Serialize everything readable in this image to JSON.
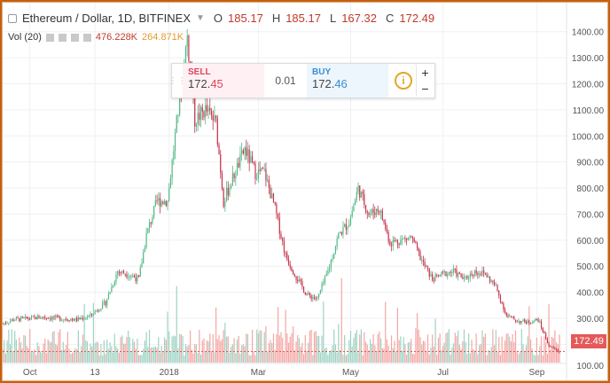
{
  "header": {
    "symbol": "Ethereum / Dollar, 1D, BITFINEX",
    "open_label": "O",
    "open": "185.17",
    "high_label": "H",
    "high": "185.17",
    "low_label": "L",
    "low": "167.32",
    "close_label": "C",
    "close": "172.49"
  },
  "volume_legend": {
    "label": "Vol (20)",
    "value_1": "476.228K",
    "value_2": "264.871K"
  },
  "trade_panel": {
    "sell_label": "SELL",
    "sell_price_main": "172.",
    "sell_price_tail": "45",
    "spread": "0.01",
    "buy_label": "BUY",
    "buy_price_main": "172.",
    "buy_price_tail": "46",
    "info_icon": "info-icon",
    "zoom_in": "+",
    "zoom_out": "−"
  },
  "last_price_tag": "172.49",
  "colors": {
    "up": "#53b987",
    "down": "#c5354b",
    "volume_up": "#9ed3c3",
    "volume_down": "#f4a7a5",
    "frame": "#c65f10"
  },
  "chart_data": {
    "type": "candlestick",
    "title": "Ethereum / Dollar, 1D, BITFINEX",
    "y_ticks": [
      200,
      300,
      400,
      500,
      600,
      700,
      800,
      900,
      1000,
      1100,
      1200,
      1300,
      1400
    ],
    "y_tick_labels": [
      "200.00",
      "300.00",
      "400.00",
      "500.00",
      "600.00",
      "700.00",
      "800.00",
      "900.00",
      "1000.00",
      "1100.00",
      "1200.00",
      "1300.00",
      "1400.00"
    ],
    "y_tick_partial_label": "100.00",
    "ylim": [
      130,
      1450
    ],
    "x_ticks": [
      {
        "label": "Oct",
        "date": "2017-10-01"
      },
      {
        "label": "13",
        "date": "2017-11-13"
      },
      {
        "label": "2018",
        "date": "2018-01-01"
      },
      {
        "label": "Mar",
        "date": "2018-03-01"
      },
      {
        "label": "May",
        "date": "2018-05-01"
      },
      {
        "label": "Jul",
        "date": "2018-07-01"
      },
      {
        "label": "Sep",
        "date": "2018-09-01"
      }
    ],
    "x_range": [
      "2017-09-13",
      "2018-09-16"
    ],
    "price_path": [
      [
        "2017-09-13",
        280
      ],
      [
        "2017-09-20",
        295
      ],
      [
        "2017-10-01",
        300
      ],
      [
        "2017-10-10",
        305
      ],
      [
        "2017-10-20",
        300
      ],
      [
        "2017-11-01",
        295
      ],
      [
        "2017-11-10",
        310
      ],
      [
        "2017-11-20",
        360
      ],
      [
        "2017-11-28",
        480
      ],
      [
        "2017-12-05",
        470
      ],
      [
        "2017-12-12",
        450
      ],
      [
        "2017-12-17",
        620
      ],
      [
        "2017-12-24",
        750
      ],
      [
        "2017-12-31",
        750
      ],
      [
        "2018-01-06",
        1050
      ],
      [
        "2018-01-13",
        1380
      ],
      [
        "2018-01-18",
        1060
      ],
      [
        "2018-01-25",
        1100
      ],
      [
        "2018-02-01",
        1050
      ],
      [
        "2018-02-06",
        750
      ],
      [
        "2018-02-13",
        850
      ],
      [
        "2018-02-20",
        950
      ],
      [
        "2018-02-27",
        860
      ],
      [
        "2018-03-05",
        860
      ],
      [
        "2018-03-12",
        720
      ],
      [
        "2018-03-19",
        540
      ],
      [
        "2018-03-26",
        460
      ],
      [
        "2018-04-02",
        390
      ],
      [
        "2018-04-09",
        375
      ],
      [
        "2018-04-16",
        480
      ],
      [
        "2018-04-23",
        620
      ],
      [
        "2018-04-30",
        670
      ],
      [
        "2018-05-06",
        800
      ],
      [
        "2018-05-13",
        700
      ],
      [
        "2018-05-20",
        720
      ],
      [
        "2018-05-27",
        590
      ],
      [
        "2018-06-03",
        600
      ],
      [
        "2018-06-10",
        610
      ],
      [
        "2018-06-17",
        520
      ],
      [
        "2018-06-24",
        450
      ],
      [
        "2018-07-01",
        470
      ],
      [
        "2018-07-08",
        480
      ],
      [
        "2018-07-15",
        450
      ],
      [
        "2018-07-22",
        480
      ],
      [
        "2018-07-29",
        470
      ],
      [
        "2018-08-05",
        420
      ],
      [
        "2018-08-12",
        310
      ],
      [
        "2018-08-19",
        290
      ],
      [
        "2018-08-26",
        285
      ],
      [
        "2018-09-02",
        295
      ],
      [
        "2018-09-09",
        195
      ],
      [
        "2018-09-16",
        172
      ]
    ],
    "last_close": 172.49,
    "grid": true,
    "volume_pane": true
  }
}
